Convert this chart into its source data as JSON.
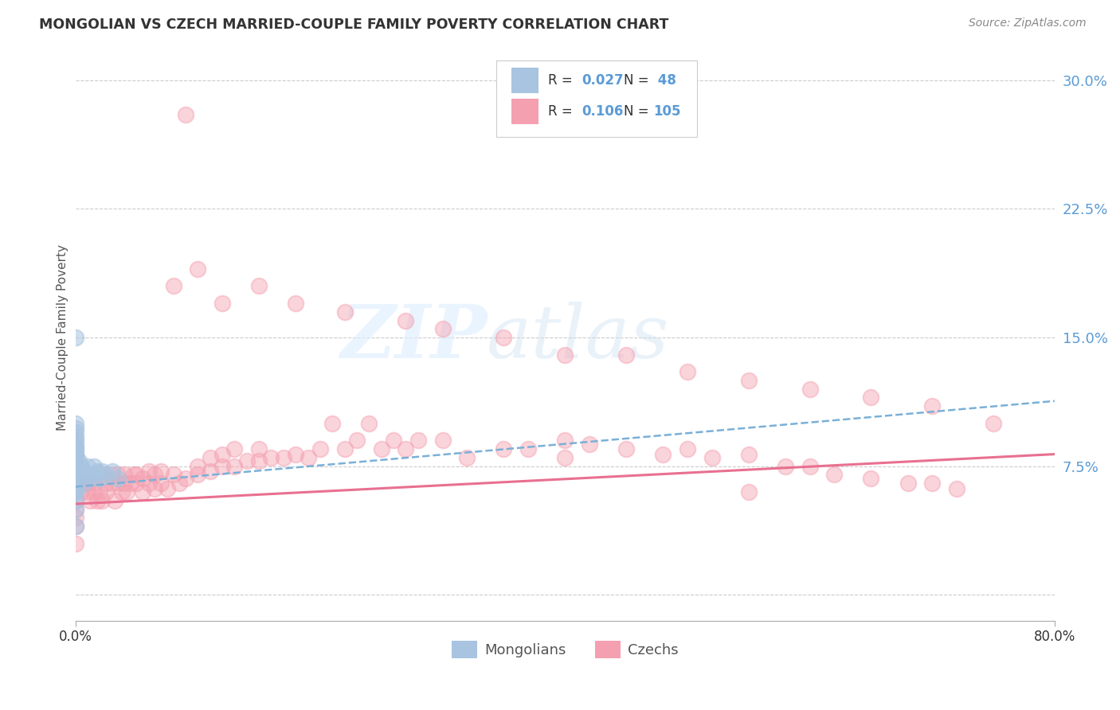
{
  "title": "MONGOLIAN VS CZECH MARRIED-COUPLE FAMILY POVERTY CORRELATION CHART",
  "source": "Source: ZipAtlas.com",
  "ylabel": "Married-Couple Family Poverty",
  "yticks": [
    0.0,
    0.075,
    0.15,
    0.225,
    0.3
  ],
  "ytick_labels": [
    "",
    "7.5%",
    "15.0%",
    "22.5%",
    "30.0%"
  ],
  "xlim": [
    0.0,
    0.8
  ],
  "ylim": [
    -0.015,
    0.315
  ],
  "r_mongolian": 0.027,
  "n_mongolian": 48,
  "r_czech": 0.106,
  "n_czech": 105,
  "color_mongolian": "#a8c4e0",
  "color_czech": "#f4a0b0",
  "color_line_mongolian": "#7ab0d8",
  "color_line_czech": "#e87090",
  "color_text_blue": "#5b9bd5",
  "color_text_dark": "#333333",
  "background_color": "#ffffff",
  "mong_trend_x0": 0.0,
  "mong_trend_y0": 0.063,
  "mong_trend_x1": 0.8,
  "mong_trend_y1": 0.113,
  "czech_trend_x0": 0.0,
  "czech_trend_y0": 0.053,
  "czech_trend_x1": 0.8,
  "czech_trend_y1": 0.082,
  "mongolian_x": [
    0.0,
    0.0,
    0.0,
    0.0,
    0.0,
    0.0,
    0.0,
    0.0,
    0.0,
    0.0,
    0.0,
    0.0,
    0.0,
    0.0,
    0.0,
    0.0,
    0.0,
    0.0,
    0.0,
    0.0,
    0.0,
    0.0,
    0.0,
    0.0,
    0.0,
    0.0,
    0.0,
    0.0,
    0.0,
    0.0,
    0.003,
    0.003,
    0.005,
    0.005,
    0.007,
    0.007,
    0.01,
    0.01,
    0.012,
    0.015,
    0.015,
    0.018,
    0.02,
    0.022,
    0.025,
    0.03,
    0.035,
    0.0
  ],
  "mongolian_y": [
    0.04,
    0.05,
    0.055,
    0.06,
    0.062,
    0.065,
    0.067,
    0.07,
    0.072,
    0.074,
    0.075,
    0.076,
    0.077,
    0.078,
    0.08,
    0.082,
    0.083,
    0.085,
    0.086,
    0.088,
    0.09,
    0.092,
    0.095,
    0.097,
    0.1,
    0.08,
    0.075,
    0.07,
    0.065,
    0.06,
    0.072,
    0.078,
    0.07,
    0.075,
    0.065,
    0.072,
    0.07,
    0.075,
    0.068,
    0.07,
    0.075,
    0.072,
    0.068,
    0.072,
    0.07,
    0.072,
    0.068,
    0.15
  ],
  "czech_x": [
    0.0,
    0.0,
    0.0,
    0.0,
    0.0,
    0.005,
    0.008,
    0.01,
    0.01,
    0.012,
    0.015,
    0.015,
    0.018,
    0.02,
    0.02,
    0.022,
    0.025,
    0.025,
    0.03,
    0.03,
    0.032,
    0.035,
    0.035,
    0.038,
    0.04,
    0.04,
    0.042,
    0.045,
    0.048,
    0.05,
    0.05,
    0.055,
    0.055,
    0.06,
    0.06,
    0.065,
    0.065,
    0.07,
    0.07,
    0.075,
    0.08,
    0.085,
    0.09,
    0.09,
    0.1,
    0.1,
    0.11,
    0.11,
    0.12,
    0.12,
    0.13,
    0.13,
    0.14,
    0.15,
    0.15,
    0.16,
    0.17,
    0.18,
    0.19,
    0.2,
    0.21,
    0.22,
    0.23,
    0.24,
    0.25,
    0.26,
    0.27,
    0.28,
    0.3,
    0.32,
    0.35,
    0.37,
    0.4,
    0.42,
    0.45,
    0.48,
    0.5,
    0.52,
    0.55,
    0.58,
    0.6,
    0.62,
    0.65,
    0.68,
    0.7,
    0.72,
    0.08,
    0.1,
    0.12,
    0.15,
    0.18,
    0.22,
    0.27,
    0.3,
    0.35,
    0.4,
    0.45,
    0.5,
    0.55,
    0.6,
    0.65,
    0.7,
    0.75,
    0.4,
    0.55
  ],
  "czech_y": [
    0.03,
    0.04,
    0.045,
    0.05,
    0.055,
    0.06,
    0.065,
    0.06,
    0.065,
    0.055,
    0.06,
    0.065,
    0.055,
    0.06,
    0.07,
    0.055,
    0.06,
    0.065,
    0.065,
    0.07,
    0.055,
    0.065,
    0.07,
    0.06,
    0.065,
    0.07,
    0.06,
    0.065,
    0.07,
    0.065,
    0.07,
    0.06,
    0.068,
    0.065,
    0.072,
    0.062,
    0.07,
    0.065,
    0.072,
    0.062,
    0.07,
    0.065,
    0.28,
    0.068,
    0.07,
    0.075,
    0.072,
    0.08,
    0.075,
    0.082,
    0.075,
    0.085,
    0.078,
    0.085,
    0.078,
    0.08,
    0.08,
    0.082,
    0.08,
    0.085,
    0.1,
    0.085,
    0.09,
    0.1,
    0.085,
    0.09,
    0.085,
    0.09,
    0.09,
    0.08,
    0.085,
    0.085,
    0.09,
    0.088,
    0.085,
    0.082,
    0.085,
    0.08,
    0.082,
    0.075,
    0.075,
    0.07,
    0.068,
    0.065,
    0.065,
    0.062,
    0.18,
    0.19,
    0.17,
    0.18,
    0.17,
    0.165,
    0.16,
    0.155,
    0.15,
    0.14,
    0.14,
    0.13,
    0.125,
    0.12,
    0.115,
    0.11,
    0.1,
    0.08,
    0.06
  ]
}
